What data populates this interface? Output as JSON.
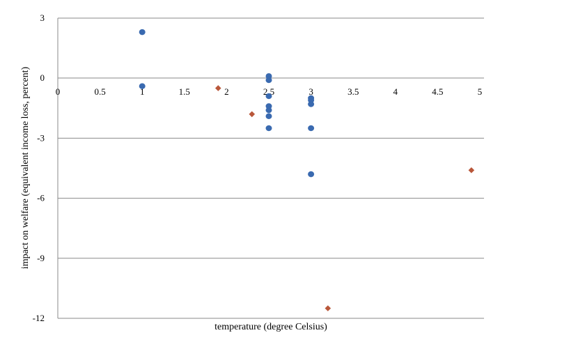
{
  "chart_data": {
    "type": "scatter",
    "xlabel": "temperature (degree Celsius)",
    "ylabel": "impact on welfare (equivalent income loss, percent)",
    "xlim": [
      0,
      5
    ],
    "ylim": [
      -12,
      3
    ],
    "x_ticks": [
      "0",
      "0.5",
      "1",
      "1.5",
      "2",
      "2.5",
      "3",
      "3.5",
      "4",
      "4.5",
      "5"
    ],
    "y_ticks": [
      "3",
      "0",
      "-3",
      "-6",
      "-9",
      "-12"
    ],
    "x_tick_values": [
      0,
      0.5,
      1,
      1.5,
      2,
      2.5,
      3,
      3.5,
      4,
      4.5,
      5
    ],
    "y_tick_values": [
      3,
      0,
      -3,
      -6,
      -9,
      -12
    ],
    "grid": "horizontal",
    "series": [
      {
        "marker": "circle",
        "color": "#3a6ab0",
        "points": [
          {
            "x": 1.0,
            "y": 2.3
          },
          {
            "x": 1.0,
            "y": -0.4
          },
          {
            "x": 2.5,
            "y": 0.1
          },
          {
            "x": 2.5,
            "y": -0.1
          },
          {
            "x": 2.5,
            "y": -0.9
          },
          {
            "x": 2.5,
            "y": -1.4
          },
          {
            "x": 2.5,
            "y": -1.6
          },
          {
            "x": 2.5,
            "y": -1.9
          },
          {
            "x": 2.5,
            "y": -2.5
          },
          {
            "x": 3.0,
            "y": -1.0
          },
          {
            "x": 3.0,
            "y": -1.1
          },
          {
            "x": 3.0,
            "y": -1.3
          },
          {
            "x": 3.0,
            "y": -2.5
          },
          {
            "x": 3.0,
            "y": -4.8
          }
        ]
      },
      {
        "marker": "diamond",
        "color": "#b9573a",
        "points": [
          {
            "x": 1.9,
            "y": -0.5
          },
          {
            "x": 2.3,
            "y": -1.8
          },
          {
            "x": 3.2,
            "y": -11.5
          },
          {
            "x": 4.9,
            "y": -4.6
          }
        ]
      }
    ]
  }
}
